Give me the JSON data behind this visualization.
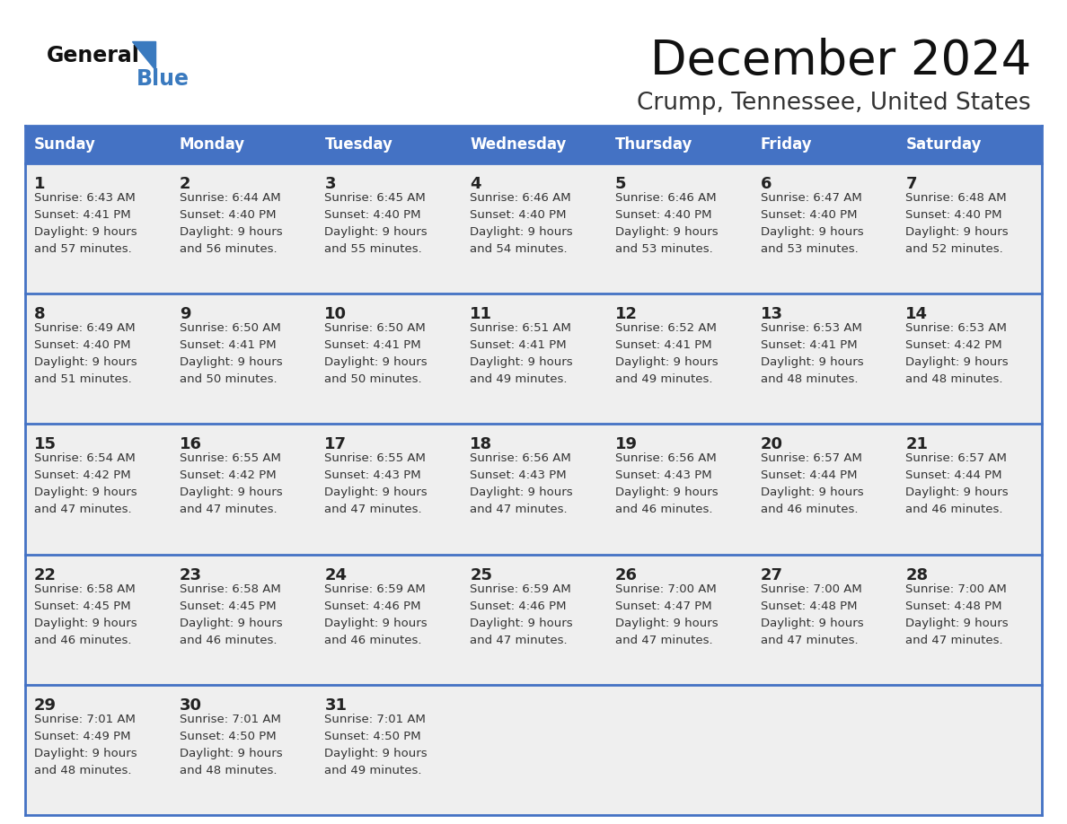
{
  "title": "December 2024",
  "subtitle": "Crump, Tennessee, United States",
  "days_of_week": [
    "Sunday",
    "Monday",
    "Tuesday",
    "Wednesday",
    "Thursday",
    "Friday",
    "Saturday"
  ],
  "header_bg": "#4472C4",
  "header_text": "#FFFFFF",
  "cell_bg": "#EFEFEF",
  "day_num_color": "#222222",
  "info_text_color": "#333333",
  "row_sep_color": "#4472C4",
  "title_color": "#111111",
  "subtitle_color": "#333333",
  "logo_general_color": "#111111",
  "logo_blue_color": "#3a7abf",
  "calendar_data": [
    [
      {
        "day": 1,
        "sunrise": "6:43 AM",
        "sunset": "4:41 PM",
        "daylight_h": "9 hours",
        "daylight_m": "and 57 minutes."
      },
      {
        "day": 2,
        "sunrise": "6:44 AM",
        "sunset": "4:40 PM",
        "daylight_h": "9 hours",
        "daylight_m": "and 56 minutes."
      },
      {
        "day": 3,
        "sunrise": "6:45 AM",
        "sunset": "4:40 PM",
        "daylight_h": "9 hours",
        "daylight_m": "and 55 minutes."
      },
      {
        "day": 4,
        "sunrise": "6:46 AM",
        "sunset": "4:40 PM",
        "daylight_h": "9 hours",
        "daylight_m": "and 54 minutes."
      },
      {
        "day": 5,
        "sunrise": "6:46 AM",
        "sunset": "4:40 PM",
        "daylight_h": "9 hours",
        "daylight_m": "and 53 minutes."
      },
      {
        "day": 6,
        "sunrise": "6:47 AM",
        "sunset": "4:40 PM",
        "daylight_h": "9 hours",
        "daylight_m": "and 53 minutes."
      },
      {
        "day": 7,
        "sunrise": "6:48 AM",
        "sunset": "4:40 PM",
        "daylight_h": "9 hours",
        "daylight_m": "and 52 minutes."
      }
    ],
    [
      {
        "day": 8,
        "sunrise": "6:49 AM",
        "sunset": "4:40 PM",
        "daylight_h": "9 hours",
        "daylight_m": "and 51 minutes."
      },
      {
        "day": 9,
        "sunrise": "6:50 AM",
        "sunset": "4:41 PM",
        "daylight_h": "9 hours",
        "daylight_m": "and 50 minutes."
      },
      {
        "day": 10,
        "sunrise": "6:50 AM",
        "sunset": "4:41 PM",
        "daylight_h": "9 hours",
        "daylight_m": "and 50 minutes."
      },
      {
        "day": 11,
        "sunrise": "6:51 AM",
        "sunset": "4:41 PM",
        "daylight_h": "9 hours",
        "daylight_m": "and 49 minutes."
      },
      {
        "day": 12,
        "sunrise": "6:52 AM",
        "sunset": "4:41 PM",
        "daylight_h": "9 hours",
        "daylight_m": "and 49 minutes."
      },
      {
        "day": 13,
        "sunrise": "6:53 AM",
        "sunset": "4:41 PM",
        "daylight_h": "9 hours",
        "daylight_m": "and 48 minutes."
      },
      {
        "day": 14,
        "sunrise": "6:53 AM",
        "sunset": "4:42 PM",
        "daylight_h": "9 hours",
        "daylight_m": "and 48 minutes."
      }
    ],
    [
      {
        "day": 15,
        "sunrise": "6:54 AM",
        "sunset": "4:42 PM",
        "daylight_h": "9 hours",
        "daylight_m": "and 47 minutes."
      },
      {
        "day": 16,
        "sunrise": "6:55 AM",
        "sunset": "4:42 PM",
        "daylight_h": "9 hours",
        "daylight_m": "and 47 minutes."
      },
      {
        "day": 17,
        "sunrise": "6:55 AM",
        "sunset": "4:43 PM",
        "daylight_h": "9 hours",
        "daylight_m": "and 47 minutes."
      },
      {
        "day": 18,
        "sunrise": "6:56 AM",
        "sunset": "4:43 PM",
        "daylight_h": "9 hours",
        "daylight_m": "and 47 minutes."
      },
      {
        "day": 19,
        "sunrise": "6:56 AM",
        "sunset": "4:43 PM",
        "daylight_h": "9 hours",
        "daylight_m": "and 46 minutes."
      },
      {
        "day": 20,
        "sunrise": "6:57 AM",
        "sunset": "4:44 PM",
        "daylight_h": "9 hours",
        "daylight_m": "and 46 minutes."
      },
      {
        "day": 21,
        "sunrise": "6:57 AM",
        "sunset": "4:44 PM",
        "daylight_h": "9 hours",
        "daylight_m": "and 46 minutes."
      }
    ],
    [
      {
        "day": 22,
        "sunrise": "6:58 AM",
        "sunset": "4:45 PM",
        "daylight_h": "9 hours",
        "daylight_m": "and 46 minutes."
      },
      {
        "day": 23,
        "sunrise": "6:58 AM",
        "sunset": "4:45 PM",
        "daylight_h": "9 hours",
        "daylight_m": "and 46 minutes."
      },
      {
        "day": 24,
        "sunrise": "6:59 AM",
        "sunset": "4:46 PM",
        "daylight_h": "9 hours",
        "daylight_m": "and 46 minutes."
      },
      {
        "day": 25,
        "sunrise": "6:59 AM",
        "sunset": "4:46 PM",
        "daylight_h": "9 hours",
        "daylight_m": "and 47 minutes."
      },
      {
        "day": 26,
        "sunrise": "7:00 AM",
        "sunset": "4:47 PM",
        "daylight_h": "9 hours",
        "daylight_m": "and 47 minutes."
      },
      {
        "day": 27,
        "sunrise": "7:00 AM",
        "sunset": "4:48 PM",
        "daylight_h": "9 hours",
        "daylight_m": "and 47 minutes."
      },
      {
        "day": 28,
        "sunrise": "7:00 AM",
        "sunset": "4:48 PM",
        "daylight_h": "9 hours",
        "daylight_m": "and 47 minutes."
      }
    ],
    [
      {
        "day": 29,
        "sunrise": "7:01 AM",
        "sunset": "4:49 PM",
        "daylight_h": "9 hours",
        "daylight_m": "and 48 minutes."
      },
      {
        "day": 30,
        "sunrise": "7:01 AM",
        "sunset": "4:50 PM",
        "daylight_h": "9 hours",
        "daylight_m": "and 48 minutes."
      },
      {
        "day": 31,
        "sunrise": "7:01 AM",
        "sunset": "4:50 PM",
        "daylight_h": "9 hours",
        "daylight_m": "and 49 minutes."
      },
      null,
      null,
      null,
      null
    ]
  ]
}
